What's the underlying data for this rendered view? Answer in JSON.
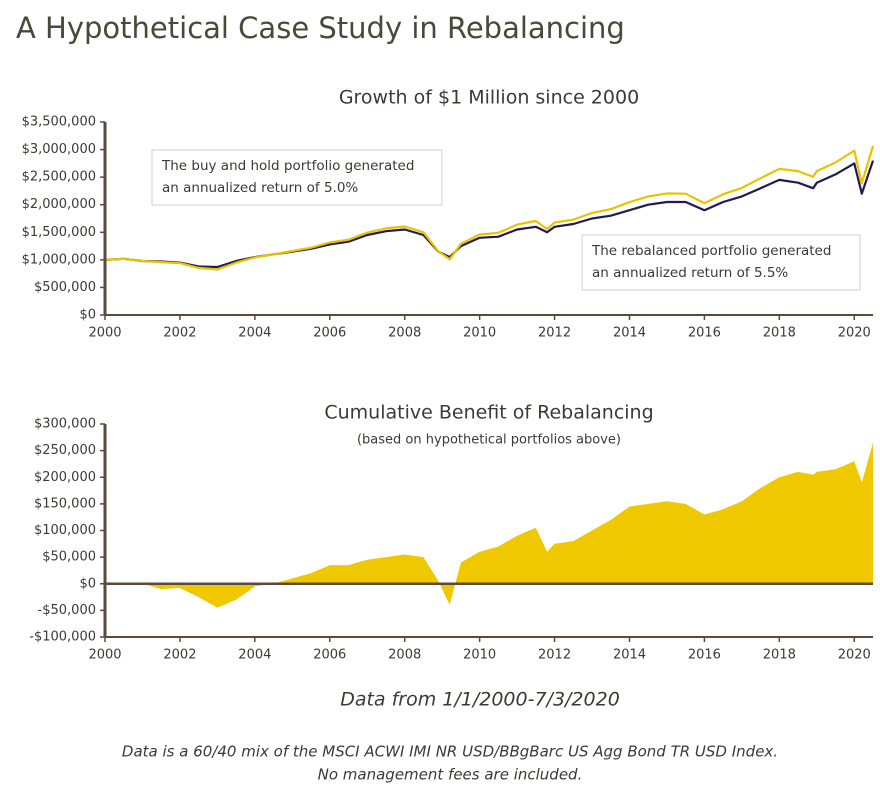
{
  "title": "A Hypothetical Case Study in Rebalancing",
  "caption": "Data from 1/1/2000-7/3/2020",
  "footnote": [
    "Data is a 60/40 mix of the MSCI ACWI IMI NR USD/BBgBarc US Agg Bond TR USD Index.",
    "No management fees are included."
  ],
  "chart_data": [
    {
      "type": "line",
      "title": "Growth of $1 Million since 2000",
      "x": [
        2000,
        2000.5,
        2001,
        2001.5,
        2002,
        2002.5,
        2003,
        2003.5,
        2004,
        2004.5,
        2005,
        2005.5,
        2006,
        2006.5,
        2007,
        2007.5,
        2008,
        2008.5,
        2008.9,
        2009.2,
        2009.5,
        2010,
        2010.5,
        2011,
        2011.5,
        2011.8,
        2012,
        2012.5,
        2013,
        2013.5,
        2014,
        2014.5,
        2015,
        2015.5,
        2016,
        2016.5,
        2017,
        2017.5,
        2018,
        2018.5,
        2018.9,
        2019,
        2019.5,
        2020,
        2020.2,
        2020.5
      ],
      "series": [
        {
          "color": "#231a4e",
          "values": [
            1000000,
            1020000,
            980000,
            970000,
            950000,
            880000,
            870000,
            980000,
            1050000,
            1100000,
            1150000,
            1200000,
            1280000,
            1330000,
            1450000,
            1520000,
            1550000,
            1450000,
            1150000,
            1050000,
            1250000,
            1400000,
            1420000,
            1550000,
            1600000,
            1500000,
            1600000,
            1650000,
            1750000,
            1800000,
            1900000,
            2000000,
            2050000,
            2050000,
            1900000,
            2050000,
            2150000,
            2300000,
            2450000,
            2400000,
            2300000,
            2400000,
            2550000,
            2750000,
            2200000,
            2800000
          ]
        },
        {
          "color": "#e8c400",
          "values": [
            1000000,
            1020000,
            980000,
            960000,
            942000,
            855000,
            825000,
            950000,
            1045000,
            1100000,
            1160000,
            1220000,
            1315000,
            1365000,
            1495000,
            1570000,
            1605000,
            1500000,
            1155000,
            1010000,
            1290000,
            1460000,
            1490000,
            1640000,
            1705000,
            1560000,
            1675000,
            1730000,
            1850000,
            1920000,
            2045000,
            2150000,
            2205000,
            2200000,
            2030000,
            2190000,
            2305000,
            2480000,
            2650000,
            2610000,
            2505000,
            2610000,
            2765000,
            2980000,
            2390000,
            3065000
          ]
        }
      ],
      "xlim": [
        2000,
        2020.5
      ],
      "xticks": [
        2000,
        2002,
        2004,
        2006,
        2008,
        2010,
        2012,
        2014,
        2016,
        2018,
        2020
      ],
      "ylim": [
        0,
        3500000
      ],
      "yticks": [
        {
          "value": 0,
          "label": "$0"
        },
        {
          "value": 500000,
          "label": "$500,000"
        },
        {
          "value": 1000000,
          "label": "$1,000,000"
        },
        {
          "value": 1500000,
          "label": "$1,500,000"
        },
        {
          "value": 2000000,
          "label": "$2,000,000"
        },
        {
          "value": 2500000,
          "label": "$2,500,000"
        },
        {
          "value": 3000000,
          "label": "$3,000,000"
        },
        {
          "value": 3500000,
          "label": "$3,500,000"
        }
      ],
      "annotations": [
        [
          "The buy and hold portfolio generated",
          "an annualized return of 5.0%"
        ],
        [
          "The rebalanced portfolio generated",
          "an annualized return of 5.5%"
        ]
      ]
    },
    {
      "type": "area",
      "title": "Cumulative Benefit of Rebalancing",
      "subtitle": "(based on hypothetical portfolios above)",
      "x": [
        2000,
        2000.5,
        2001,
        2001.5,
        2002,
        2002.5,
        2003,
        2003.5,
        2004,
        2004.5,
        2005,
        2005.5,
        2006,
        2006.5,
        2007,
        2007.5,
        2008,
        2008.5,
        2008.9,
        2009.2,
        2009.5,
        2010,
        2010.5,
        2011,
        2011.5,
        2011.8,
        2012,
        2012.5,
        2013,
        2013.5,
        2014,
        2014.5,
        2015,
        2015.5,
        2016,
        2016.5,
        2017,
        2017.5,
        2018,
        2018.5,
        2018.9,
        2019,
        2019.5,
        2020,
        2020.2,
        2020.5
      ],
      "values": [
        0,
        0,
        0,
        -10000,
        -8000,
        -25000,
        -45000,
        -30000,
        -5000,
        0,
        10000,
        20000,
        35000,
        35000,
        45000,
        50000,
        55000,
        50000,
        5000,
        -40000,
        40000,
        60000,
        70000,
        90000,
        105000,
        60000,
        75000,
        80000,
        100000,
        120000,
        145000,
        150000,
        155000,
        150000,
        130000,
        140000,
        155000,
        180000,
        200000,
        210000,
        205000,
        210000,
        215000,
        230000,
        190000,
        265000
      ],
      "color": "#f0c800",
      "xlim": [
        2000,
        2020.5
      ],
      "xticks": [
        2000,
        2002,
        2004,
        2006,
        2008,
        2010,
        2012,
        2014,
        2016,
        2018,
        2020
      ],
      "ylim": [
        -100000,
        300000
      ],
      "yticks": [
        {
          "value": -100000,
          "label": "-$100,000"
        },
        {
          "value": -50000,
          "label": "-$50,000"
        },
        {
          "value": 0,
          "label": "$0"
        },
        {
          "value": 50000,
          "label": "$50,000"
        },
        {
          "value": 100000,
          "label": "$100,000"
        },
        {
          "value": 150000,
          "label": "$150,000"
        },
        {
          "value": 200000,
          "label": "$200,000"
        },
        {
          "value": 250000,
          "label": "$250,000"
        },
        {
          "value": 300000,
          "label": "$300,000"
        }
      ]
    }
  ]
}
